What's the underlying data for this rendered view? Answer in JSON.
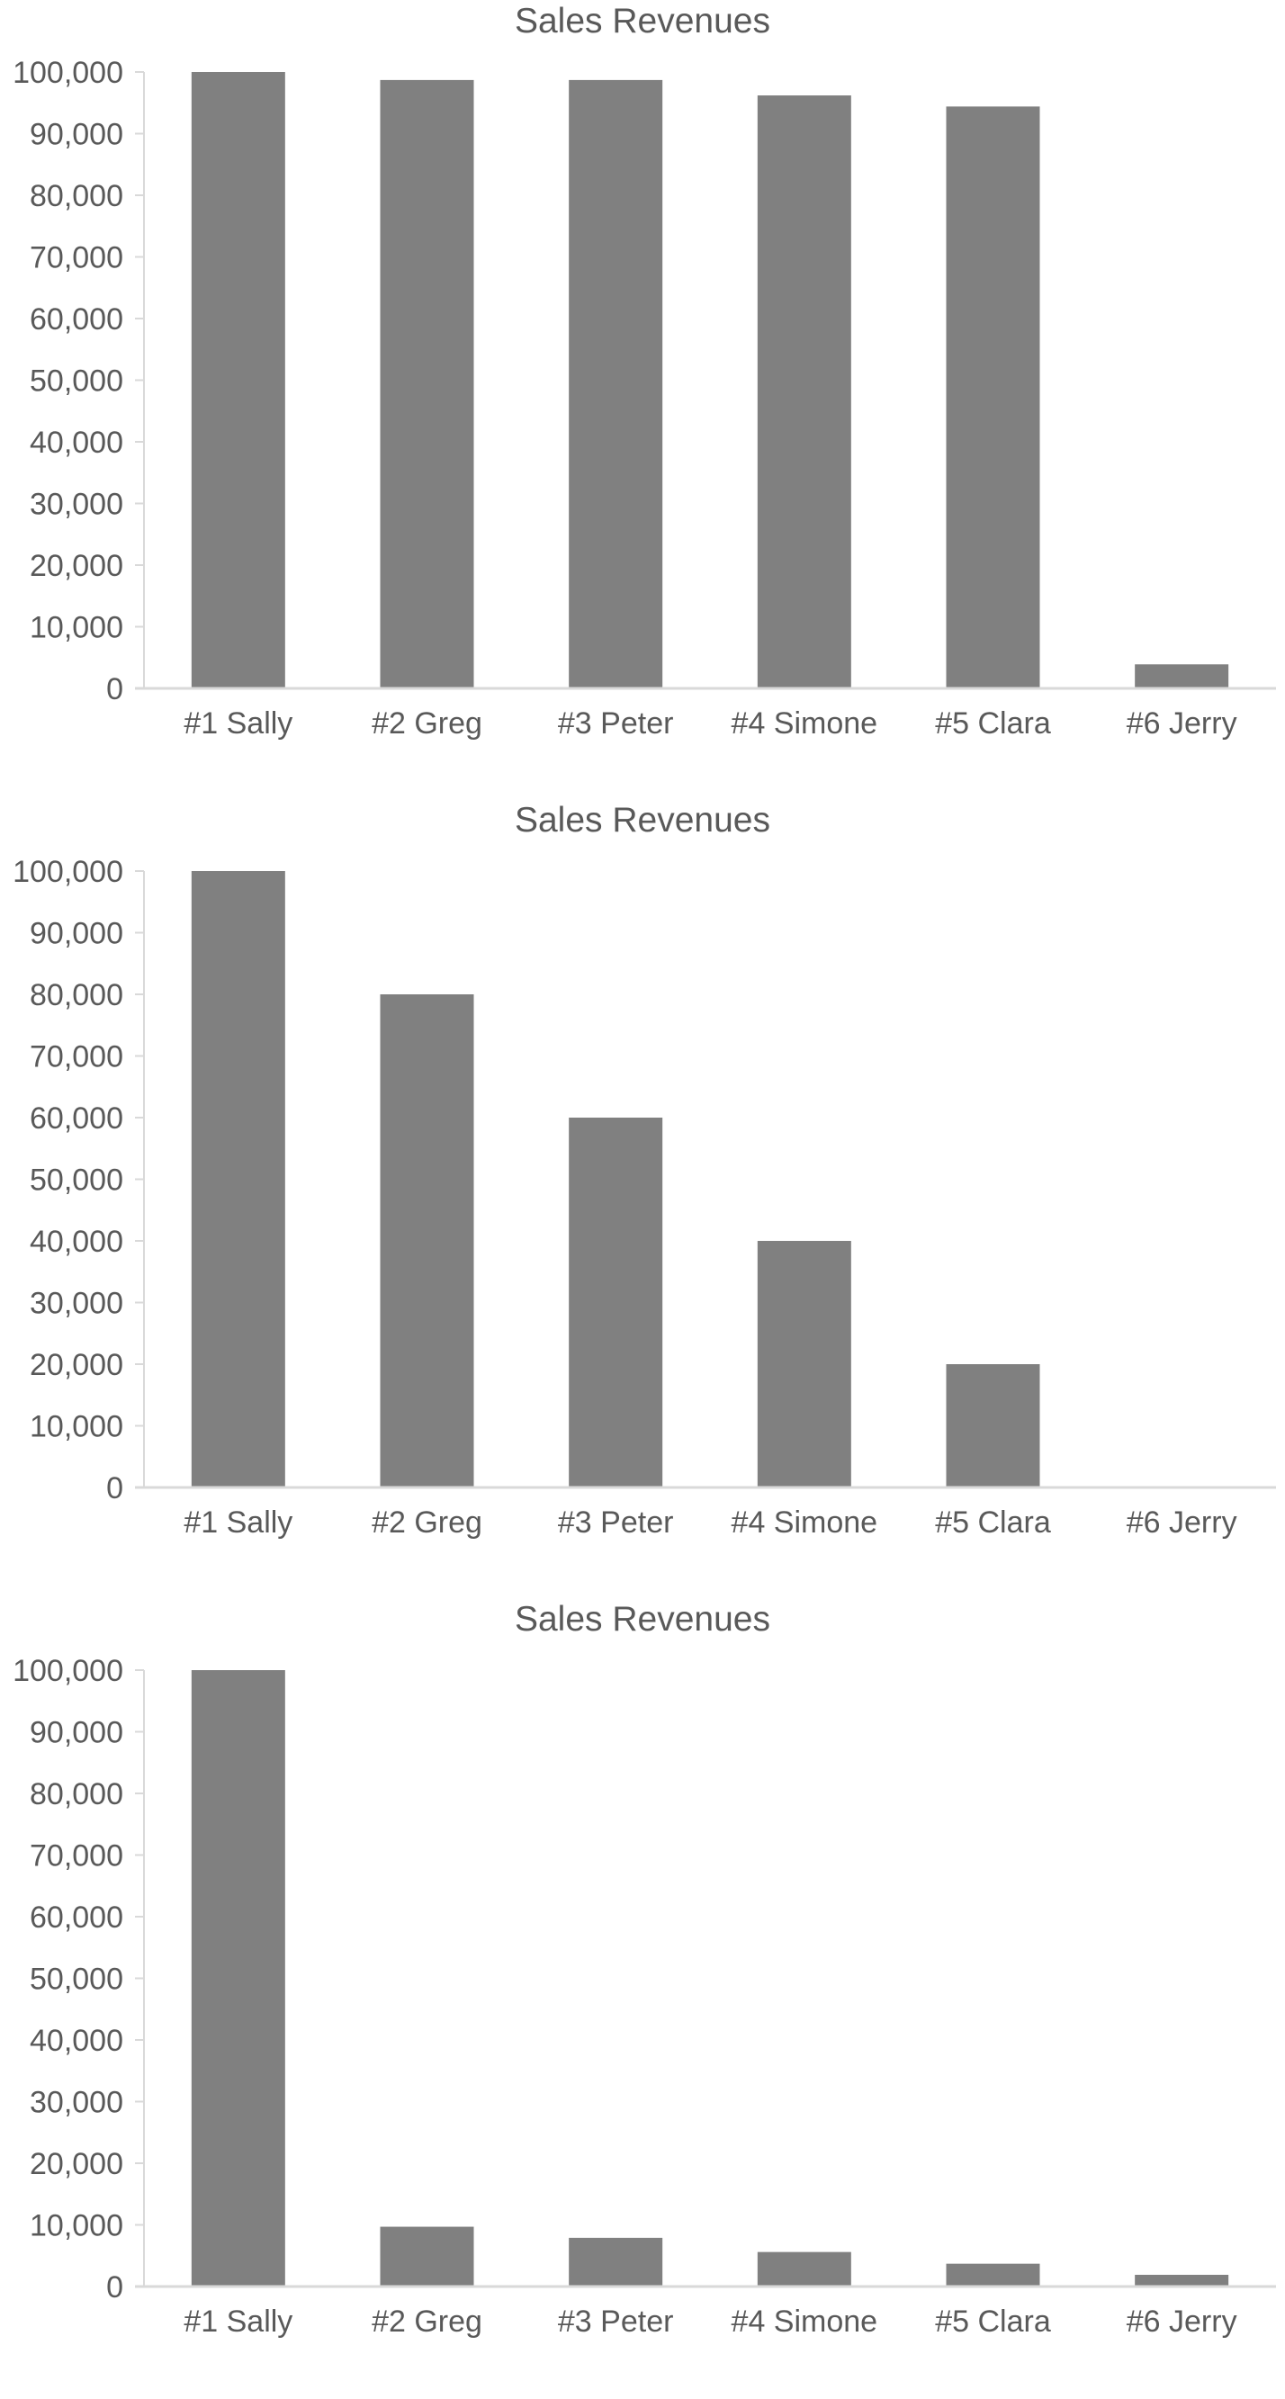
{
  "chart_data": [
    {
      "type": "bar",
      "title": "Sales Revenues",
      "categories": [
        "#1 Sally",
        "#2 Greg",
        "#3 Peter",
        "#4 Simone",
        "#5 Clara",
        "#6 Jerry"
      ],
      "values": [
        100000,
        98700,
        98700,
        96200,
        94400,
        3900
      ],
      "y_ticks": [
        "0",
        "10,000",
        "20,000",
        "30,000",
        "40,000",
        "50,000",
        "60,000",
        "70,000",
        "80,000",
        "90,000",
        "100,000"
      ],
      "ylim": [
        0,
        100000
      ],
      "grid": false,
      "legend": "none",
      "bar_color": "#808080"
    },
    {
      "type": "bar",
      "title": "Sales Revenues",
      "categories": [
        "#1 Sally",
        "#2 Greg",
        "#3 Peter",
        "#4 Simone",
        "#5 Clara",
        "#6 Jerry"
      ],
      "values": [
        100000,
        80000,
        60000,
        40000,
        20000,
        0
      ],
      "y_ticks": [
        "0",
        "10,000",
        "20,000",
        "30,000",
        "40,000",
        "50,000",
        "60,000",
        "70,000",
        "80,000",
        "90,000",
        "100,000"
      ],
      "ylim": [
        0,
        100000
      ],
      "grid": false,
      "legend": "none",
      "bar_color": "#808080"
    },
    {
      "type": "bar",
      "title": "Sales Revenues",
      "categories": [
        "#1 Sally",
        "#2 Greg",
        "#3 Peter",
        "#4 Simone",
        "#5 Clara",
        "#6 Jerry"
      ],
      "values": [
        100000,
        9700,
        7900,
        5600,
        3700,
        1900
      ],
      "y_ticks": [
        "0",
        "10,000",
        "20,000",
        "30,000",
        "40,000",
        "50,000",
        "60,000",
        "70,000",
        "80,000",
        "90,000",
        "100,000"
      ],
      "ylim": [
        0,
        100000
      ],
      "grid": false,
      "legend": "none",
      "bar_color": "#808080"
    }
  ]
}
